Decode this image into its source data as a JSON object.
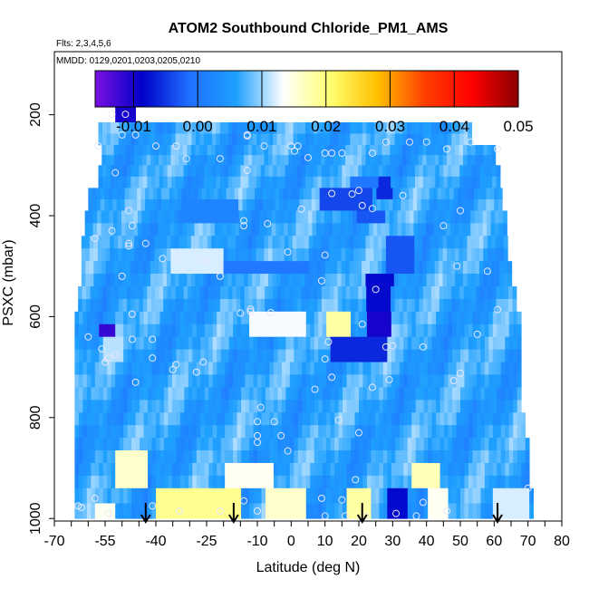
{
  "chart_data": {
    "type": "heatmap",
    "title": "ATOM2 Southbound Chloride_PM1_AMS",
    "flights_label": "Flts: 2,3,4,5,6",
    "dates_label": "MMDD: 0129,0201,0203,0205,0210",
    "xlabel": "Latitude (deg N)",
    "ylabel": "PSXC (mbar)",
    "xlim": [
      -70,
      80
    ],
    "ylim": [
      1000,
      0
    ],
    "x_ticks": [
      -70,
      -55,
      -40,
      -25,
      -10,
      0,
      10,
      20,
      30,
      40,
      50,
      60,
      70,
      80
    ],
    "x_tick_labels": [
      "-70",
      "-55",
      "-40",
      "-25",
      "-10",
      "0",
      "10",
      "20",
      "30",
      "40",
      "50",
      "60",
      "70",
      "80"
    ],
    "y_ticks": [
      200,
      400,
      600,
      800,
      1000
    ],
    "y_tick_labels": [
      "200",
      "400",
      "600",
      "800",
      "1000"
    ],
    "colorbar": {
      "range": [
        -0.016,
        0.05
      ],
      "ticks": [
        -0.01,
        0.0,
        0.01,
        0.02,
        0.03,
        0.04,
        0.05
      ],
      "tick_labels": [
        "-0.01",
        "0.00",
        "0.01",
        "0.02",
        "0.03",
        "0.04",
        "0.05"
      ],
      "colors": [
        "#7a10e0",
        "#0000c8",
        "#1f6fff",
        "#1ea0ff",
        "#ffffff",
        "#ffff70",
        "#ffc000",
        "#ff4000",
        "#ff0000",
        "#8b0000"
      ]
    },
    "base_value": 0.006,
    "layers": [
      {
        "p_top": 175,
        "p_bot": 215,
        "lat_min": -52,
        "lat_max": -46
      },
      {
        "p_top": 215,
        "p_bot": 260,
        "lat_min": -57,
        "lat_max": 53
      },
      {
        "p_top": 260,
        "p_bot": 300,
        "lat_min": -56,
        "lat_max": 60
      },
      {
        "p_top": 300,
        "p_bot": 345,
        "lat_min": -57,
        "lat_max": 61
      },
      {
        "p_top": 345,
        "p_bot": 390,
        "lat_min": -60,
        "lat_max": 62
      },
      {
        "p_top": 390,
        "p_bot": 440,
        "lat_min": -61,
        "lat_max": 63
      },
      {
        "p_top": 440,
        "p_bot": 490,
        "lat_min": -62,
        "lat_max": 64
      },
      {
        "p_top": 490,
        "p_bot": 540,
        "lat_min": -62,
        "lat_max": 65
      },
      {
        "p_top": 540,
        "p_bot": 590,
        "lat_min": -63,
        "lat_max": 66
      },
      {
        "p_top": 590,
        "p_bot": 640,
        "lat_min": -64,
        "lat_max": 67
      },
      {
        "p_top": 640,
        "p_bot": 690,
        "lat_min": -64,
        "lat_max": 67
      },
      {
        "p_top": 690,
        "p_bot": 740,
        "lat_min": -64,
        "lat_max": 68
      },
      {
        "p_top": 740,
        "p_bot": 790,
        "lat_min": -64,
        "lat_max": 68
      },
      {
        "p_top": 790,
        "p_bot": 840,
        "lat_min": -64,
        "lat_max": 69
      },
      {
        "p_top": 840,
        "p_bot": 890,
        "lat_min": -64,
        "lat_max": 70
      },
      {
        "p_top": 890,
        "p_bot": 940,
        "lat_min": -64,
        "lat_max": 70
      },
      {
        "p_top": 940,
        "p_bot": 1000,
        "lat_min": -64,
        "lat_max": 71
      }
    ],
    "patches": [
      {
        "lat": [
          -52,
          -46
        ],
        "p": [
          175,
          215
        ],
        "value": -0.01
      },
      {
        "lat": [
          18,
          26
        ],
        "p": [
          315,
          350
        ],
        "value": 0.0
      },
      {
        "lat": [
          25,
          30
        ],
        "p": [
          330,
          360
        ],
        "value": -0.006
      },
      {
        "lat": [
          8,
          24
        ],
        "p": [
          340,
          385
        ],
        "value": -0.004
      },
      {
        "lat": [
          20,
          28
        ],
        "p": [
          380,
          420
        ],
        "value": -0.003
      },
      {
        "lat": [
          -32,
          -15
        ],
        "p": [
          360,
          420
        ],
        "value": 0.002
      },
      {
        "lat": [
          -35,
          -20
        ],
        "p": [
          475,
          510
        ],
        "value": 0.012
      },
      {
        "lat": [
          28,
          36
        ],
        "p": [
          450,
          510
        ],
        "value": -0.003
      },
      {
        "lat": [
          -20,
          5
        ],
        "p": [
          490,
          525
        ],
        "value": 0.0
      },
      {
        "lat": [
          22,
          30
        ],
        "p": [
          520,
          580
        ],
        "value": -0.008
      },
      {
        "lat": [
          10,
          18
        ],
        "p": [
          590,
          640
        ],
        "value": 0.018
      },
      {
        "lat": [
          22,
          30
        ],
        "p": [
          580,
          650
        ],
        "value": -0.01
      },
      {
        "lat": [
          -57,
          -52
        ],
        "p": [
          610,
          650
        ],
        "value": -0.012
      },
      {
        "lat": [
          -12,
          5
        ],
        "p": [
          600,
          640
        ],
        "value": 0.013
      },
      {
        "lat": [
          24,
          26
        ],
        "p": [
          600,
          650
        ],
        "value": -0.015
      },
      {
        "lat": [
          12,
          28
        ],
        "p": [
          650,
          690
        ],
        "value": -0.006
      },
      {
        "lat": [
          -55,
          -50
        ],
        "p": [
          650,
          690
        ],
        "value": 0.011
      },
      {
        "lat": [
          -52,
          -42
        ],
        "p": [
          860,
          940
        ],
        "value": 0.016
      },
      {
        "lat": [
          -48,
          -42
        ],
        "p": [
          890,
          940
        ],
        "value": 0.02
      },
      {
        "lat": [
          -20,
          -5
        ],
        "p": [
          880,
          930
        ],
        "value": 0.014
      },
      {
        "lat": [
          36,
          44
        ],
        "p": [
          880,
          940
        ],
        "value": 0.017
      },
      {
        "lat": [
          -40,
          -15
        ],
        "p": [
          940,
          1000
        ],
        "value": 0.019
      },
      {
        "lat": [
          -30,
          -20
        ],
        "p": [
          950,
          1000
        ],
        "value": 0.022
      },
      {
        "lat": [
          16,
          24
        ],
        "p": [
          940,
          1000
        ],
        "value": 0.018
      },
      {
        "lat": [
          28,
          34
        ],
        "p": [
          940,
          1000
        ],
        "value": -0.008
      },
      {
        "lat": [
          30,
          33
        ],
        "p": [
          950,
          1000
        ],
        "value": -0.012
      },
      {
        "lat": [
          -8,
          5
        ],
        "p": [
          950,
          1000
        ],
        "value": 0.016
      },
      {
        "lat": [
          40,
          46
        ],
        "p": [
          950,
          1000
        ],
        "value": 0.014
      },
      {
        "lat": [
          -58,
          -52
        ],
        "p": [
          960,
          1000
        ],
        "value": 0.014
      },
      {
        "lat": [
          60,
          70
        ],
        "p": [
          940,
          990
        ],
        "value": 0.012
      }
    ],
    "points": [
      [
        -53,
        199
      ],
      [
        -49,
        199
      ],
      [
        -50,
        240
      ],
      [
        -46,
        240
      ],
      [
        -40,
        262
      ],
      [
        -34,
        262
      ],
      [
        -57,
        262
      ],
      [
        -31,
        287
      ],
      [
        -21,
        287
      ],
      [
        -13,
        242
      ],
      [
        -13,
        240
      ],
      [
        -8,
        262
      ],
      [
        0,
        262
      ],
      [
        1,
        272
      ],
      [
        2,
        262
      ],
      [
        5,
        285
      ],
      [
        10,
        276
      ],
      [
        12,
        276
      ],
      [
        15,
        276
      ],
      [
        24,
        276
      ],
      [
        28,
        254
      ],
      [
        35,
        254
      ],
      [
        40,
        254
      ],
      [
        46,
        268
      ],
      [
        53,
        254
      ],
      [
        61,
        268
      ],
      [
        -52,
        315
      ],
      [
        -48,
        390
      ],
      [
        -47,
        420
      ],
      [
        -48,
        455
      ],
      [
        -48,
        460
      ],
      [
        -53,
        430
      ],
      [
        -58,
        445
      ],
      [
        -43,
        455
      ],
      [
        -50,
        520
      ],
      [
        -38,
        485
      ],
      [
        -33,
        488
      ],
      [
        -27,
        485
      ],
      [
        -25,
        490
      ],
      [
        -21,
        520
      ],
      [
        -14,
        410
      ],
      [
        -14,
        420
      ],
      [
        -13,
        310
      ],
      [
        -7,
        416
      ],
      [
        -1,
        472
      ],
      [
        10,
        478
      ],
      [
        3,
        387
      ],
      [
        12,
        356
      ],
      [
        20,
        350
      ],
      [
        18,
        357
      ],
      [
        24,
        386
      ],
      [
        33,
        360
      ],
      [
        21,
        380
      ],
      [
        45,
        420
      ],
      [
        50,
        390
      ],
      [
        49,
        500
      ],
      [
        58,
        510
      ],
      [
        61,
        586
      ],
      [
        55,
        635
      ],
      [
        50,
        712
      ],
      [
        48,
        727
      ],
      [
        39,
        660
      ],
      [
        25,
        546
      ],
      [
        21,
        615
      ],
      [
        28,
        660
      ],
      [
        30,
        658
      ],
      [
        29,
        725
      ],
      [
        24,
        740
      ],
      [
        11,
        650
      ],
      [
        10,
        684
      ],
      [
        12,
        720
      ],
      [
        7,
        744
      ],
      [
        14,
        805
      ],
      [
        9,
        529
      ],
      [
        -12,
        585
      ],
      [
        -12,
        590
      ],
      [
        -6,
        592
      ],
      [
        -15,
        593
      ],
      [
        -34,
        695
      ],
      [
        -35,
        705
      ],
      [
        -28,
        710
      ],
      [
        -26,
        690
      ],
      [
        -41,
        682
      ],
      [
        -41,
        645
      ],
      [
        -47,
        595
      ],
      [
        -47,
        645
      ],
      [
        -60,
        640
      ],
      [
        -56,
        664
      ],
      [
        -54,
        682
      ],
      [
        -52,
        675
      ],
      [
        -55,
        690
      ],
      [
        -46,
        730
      ],
      [
        -9,
        780
      ],
      [
        -10,
        808
      ],
      [
        -10,
        849
      ],
      [
        -10,
        836
      ],
      [
        -5,
        808
      ],
      [
        -3,
        836
      ],
      [
        -1,
        866
      ],
      [
        20,
        830
      ],
      [
        19,
        923
      ],
      [
        15,
        963
      ],
      [
        9,
        960
      ],
      [
        -54,
        990
      ],
      [
        -58,
        960
      ],
      [
        -41,
        975
      ],
      [
        -33,
        985
      ],
      [
        -21,
        985
      ],
      [
        -14,
        965
      ],
      [
        -10,
        985
      ],
      [
        10,
        995
      ],
      [
        16,
        995
      ],
      [
        22,
        995
      ],
      [
        31,
        990
      ],
      [
        37,
        995
      ],
      [
        46,
        985
      ],
      [
        39,
        968
      ],
      [
        70,
        940
      ],
      [
        -62,
        978
      ],
      [
        -63,
        975
      ]
    ],
    "arrows": [
      -43,
      -17,
      21,
      61
    ]
  }
}
